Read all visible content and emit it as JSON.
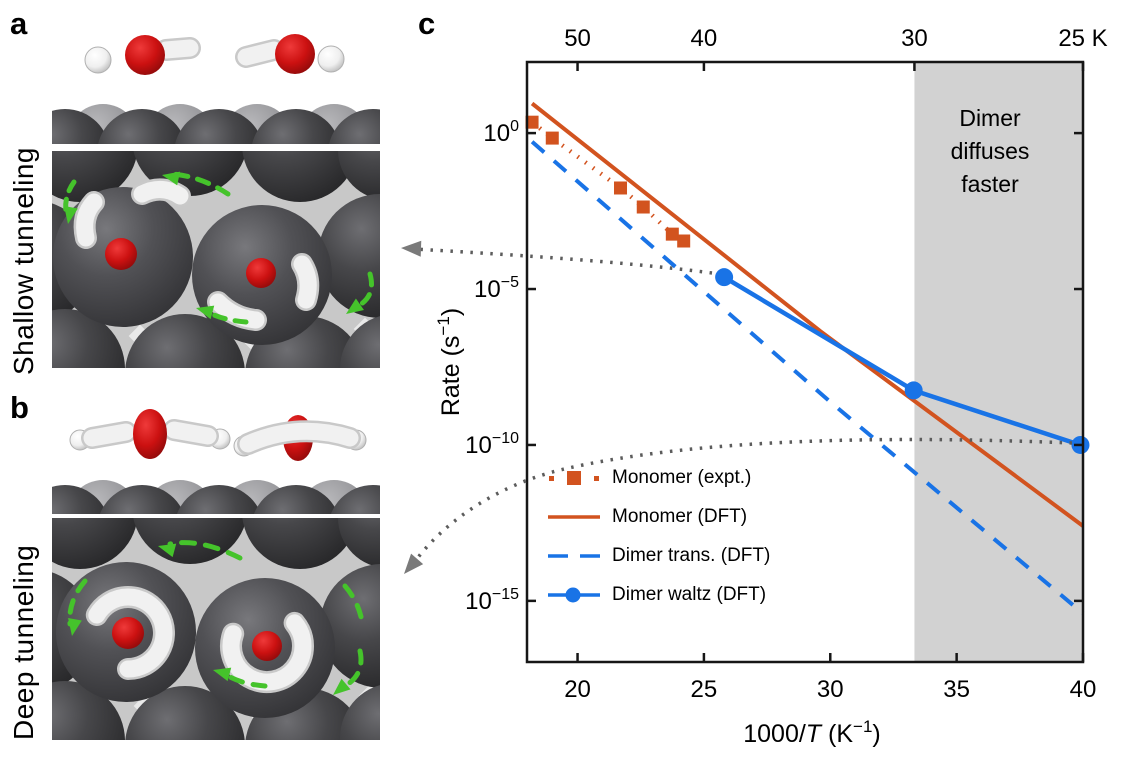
{
  "figure": {
    "panels": {
      "a": {
        "label": "a",
        "caption": "Shallow tunneling"
      },
      "b": {
        "label": "b",
        "caption": "Deep tunneling"
      },
      "c": {
        "label": "c"
      }
    },
    "colors": {
      "orange": "#d2531f",
      "blue": "#1973e6",
      "shaded_band": "#d2d2d2",
      "arrow_gray": "#5c5c5c",
      "green_arrow": "#45c32b",
      "oxygen_red": "#cc1111"
    }
  },
  "chart_data": {
    "type": "line",
    "title": "",
    "x_axis": {
      "label": "1000/T (K⁻¹)",
      "label_parts": {
        "p1": "1000/",
        "italic": "T",
        "p2": " (K",
        "sup": "−1",
        "p3": ")"
      },
      "ticks": [
        20,
        25,
        30,
        35,
        40
      ],
      "range": [
        18,
        40
      ]
    },
    "top_axis": {
      "ticks": [
        {
          "x": 20,
          "label": "50"
        },
        {
          "x": 25,
          "label": "40"
        },
        {
          "x": 33.33,
          "label": "30"
        },
        {
          "x": 40,
          "label": "25 K"
        }
      ]
    },
    "y_axis": {
      "label": "Rate (s⁻¹)",
      "label_parts": {
        "p1": "Rate (s",
        "sup": "−1",
        "p2": ")"
      },
      "scale": "log",
      "tick_exponents": [
        0,
        -5,
        -10,
        -15
      ],
      "tick_labels": [
        "10⁰",
        "10⁻⁵",
        "10⁻¹⁰",
        "10⁻¹⁵"
      ],
      "range_exponents": [
        2.28,
        -16.96
      ]
    },
    "shaded_region": {
      "x_from": 33.33,
      "x_to": 40,
      "color": "#d2d2d2",
      "label": "Dimer diffuses faster"
    },
    "series": [
      {
        "name": "Monomer (expt.)",
        "color": "#d2531f",
        "style": "dotted-squares",
        "marker": "square",
        "points_x_logy": [
          [
            18.2,
            0.35
          ],
          [
            19.0,
            -0.16
          ],
          [
            21.7,
            -1.76
          ],
          [
            22.6,
            -2.37
          ],
          [
            23.75,
            -3.24
          ],
          [
            24.2,
            -3.46
          ]
        ]
      },
      {
        "name": "Monomer (DFT)",
        "color": "#d2531f",
        "style": "solid",
        "points_x_logy": [
          [
            18.2,
            0.95
          ],
          [
            29.6,
            -6.35
          ],
          [
            40,
            -12.6
          ]
        ]
      },
      {
        "name": "Dimer trans. (DFT)",
        "color": "#1973e6",
        "style": "dashed",
        "points_x_logy": [
          [
            18.2,
            -0.28
          ],
          [
            30,
            -8.62
          ],
          [
            40,
            -15.4
          ]
        ]
      },
      {
        "name": "Dimer waltz (DFT)",
        "color": "#1973e6",
        "style": "solid-circles",
        "marker": "circle",
        "points_x_logy": [
          [
            25.8,
            -4.62
          ],
          [
            33.3,
            -8.25
          ],
          [
            39.9,
            -10.0
          ]
        ]
      }
    ],
    "legend": {
      "position": "inside-bottom-left",
      "entries": [
        "Monomer (expt.)",
        "Monomer (DFT)",
        "Dimer trans. (DFT)",
        "Dimer waltz (DFT)"
      ]
    },
    "annotations": {
      "shaded_label": "Dimer diffuses faster",
      "arrows": [
        {
          "name": "arrow-to-panel-a",
          "from_series": "Dimer waltz (DFT)",
          "from_point_index": 0,
          "points_to": "panel-a"
        },
        {
          "name": "arrow-to-panel-b",
          "from_series": "Dimer waltz (DFT)",
          "from_point_index": 2,
          "points_to": "panel-b"
        }
      ]
    }
  }
}
